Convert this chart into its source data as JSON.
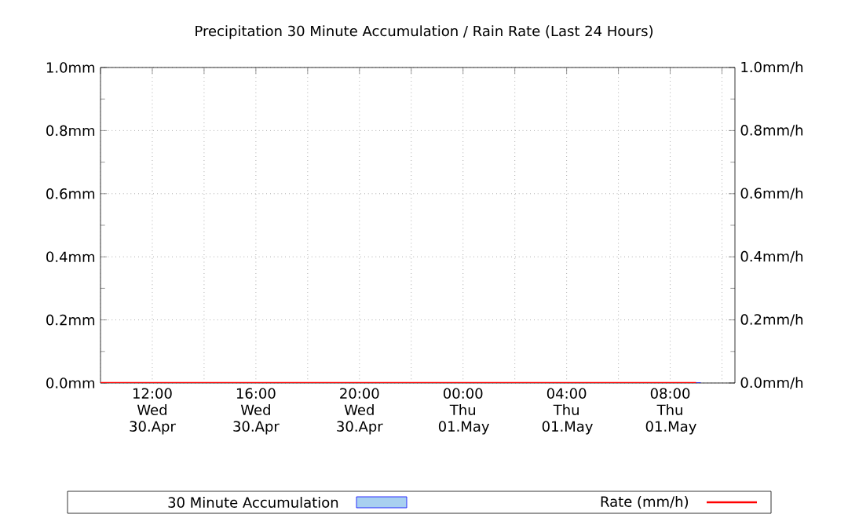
{
  "chart_data": {
    "type": "bar",
    "title": "Precipitation 30 Minute Accumulation / Rain Rate (Last 24 Hours)",
    "categories": [
      null,
      null,
      "12:00 Wed 30.Apr",
      null,
      null,
      null,
      "16:00 Wed 30.Apr",
      null,
      null,
      null,
      "20:00 Wed 30.Apr",
      null,
      null,
      null,
      "00:00 Thu 01.May",
      null,
      null,
      null,
      "04:00 Thu 01.May",
      null,
      null,
      null,
      "08:00 Thu 01.May",
      null,
      null
    ],
    "series": [
      {
        "name": "30 Minute Accumulation",
        "color": "#a8d0f0",
        "values": [
          0,
          0,
          0,
          0,
          0,
          0,
          0,
          0,
          0,
          0,
          0,
          0,
          0,
          0,
          0,
          0,
          0,
          0,
          0,
          0,
          0,
          0,
          0,
          0,
          null
        ]
      },
      {
        "name": "Rate (mm/h)",
        "type": "line",
        "axis": "y2",
        "color": "#ff0000",
        "values": [
          0,
          0,
          0,
          0,
          0,
          0,
          0,
          0,
          0,
          0,
          0,
          0,
          0,
          0,
          0,
          0,
          0,
          0,
          0,
          0,
          0,
          0,
          0,
          0,
          null
        ]
      }
    ],
    "ylim": [
      0,
      1
    ],
    "yticks": [
      {
        "value": 0,
        "label": "0.0mm"
      },
      {
        "value": 0.2,
        "label": "0.2mm"
      },
      {
        "value": 0.4,
        "label": "0.4mm"
      },
      {
        "value": 0.6,
        "label": "0.6mm"
      },
      {
        "value": 0.8,
        "label": "0.8mm"
      },
      {
        "value": 1,
        "label": "1.0mm"
      }
    ],
    "y2lim": [
      0,
      1
    ],
    "y2ticks": [
      {
        "value": 0,
        "label": "0.0mm/h"
      },
      {
        "value": 0.2,
        "label": "0.2mm/h"
      },
      {
        "value": 0.4,
        "label": "0.4mm/h"
      },
      {
        "value": 0.6,
        "label": "0.6mm/h"
      },
      {
        "value": 0.8,
        "label": "0.8mm/h"
      },
      {
        "value": 1,
        "label": "1.0mm/h"
      }
    ],
    "grid": true,
    "legend": "bottom",
    "marker": "none",
    "line_style": "solid"
  }
}
